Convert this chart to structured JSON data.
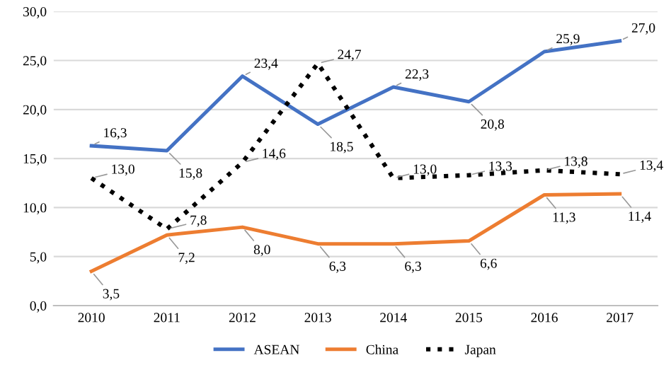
{
  "chart_data": {
    "type": "line",
    "categories": [
      "2010",
      "2011",
      "2012",
      "2013",
      "2014",
      "2015",
      "2016",
      "2017"
    ],
    "series": [
      {
        "name": "ASEAN",
        "color": "#4472c4",
        "line_style": "solid",
        "values": [
          16.3,
          15.8,
          23.4,
          18.5,
          22.3,
          20.8,
          25.9,
          27.0
        ],
        "value_labels": [
          "16,3",
          "15,8",
          "23,4",
          "18,5",
          "22,3",
          "20,8",
          "25,9",
          "27,0"
        ]
      },
      {
        "name": "China",
        "color": "#ed7d31",
        "line_style": "solid",
        "values": [
          3.5,
          7.2,
          8.0,
          6.3,
          6.3,
          6.6,
          11.3,
          11.4
        ],
        "value_labels": [
          "3,5",
          "7,2",
          "8,0",
          "6,3",
          "6,3",
          "6,6",
          "11,3",
          "11,4"
        ]
      },
      {
        "name": "Japan",
        "color": "#000000",
        "line_style": "dotted",
        "values": [
          13.0,
          7.8,
          14.6,
          24.7,
          13.0,
          13.3,
          13.8,
          13.4
        ],
        "value_labels": [
          "13,0",
          "7,8",
          "14,6",
          "24,7",
          "13,0",
          "13,3",
          "13,8",
          "13,4"
        ]
      }
    ],
    "ylim": [
      0,
      30
    ],
    "yticks": [
      {
        "value": 0,
        "label": "0,0"
      },
      {
        "value": 5,
        "label": "5,0"
      },
      {
        "value": 10,
        "label": "10,0"
      },
      {
        "value": 15,
        "label": "15,0"
      },
      {
        "value": 20,
        "label": "20,0"
      },
      {
        "value": 25,
        "label": "25,0"
      },
      {
        "value": 30,
        "label": "30,0"
      }
    ],
    "grid": "y",
    "legend": "bottom",
    "marker": "none"
  }
}
